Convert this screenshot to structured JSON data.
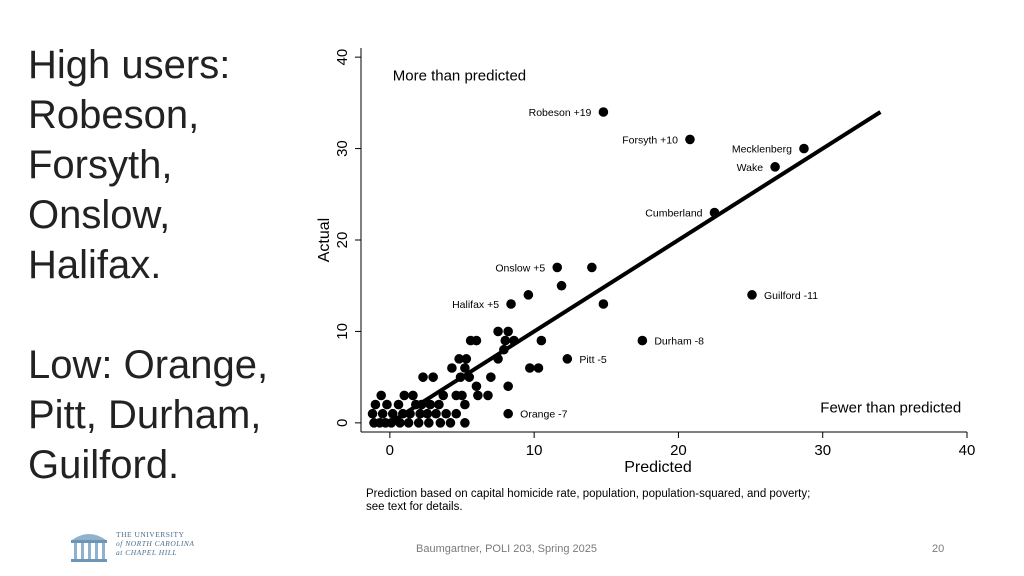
{
  "slide": {
    "heading_lines": [
      "High users:",
      "Robeson,",
      "Forsyth,",
      "Onslow,",
      "Halifax."
    ],
    "low_lines": [
      "Low: Orange,",
      "Pitt, Durham,",
      "Guilford."
    ],
    "footer_center": "Baumgartner, POLI 203, Spring 2025",
    "page_number": "20",
    "logo_lines": [
      "THE UNIVERSITY",
      "of NORTH CAROLINA",
      "at CHAPEL HILL"
    ]
  },
  "chart_data": {
    "type": "scatter",
    "xlabel": "Predicted",
    "ylabel": "Actual",
    "xlim": [
      -2,
      40
    ],
    "ylim": [
      -1,
      41
    ],
    "xticks": [
      0,
      10,
      20,
      30,
      40
    ],
    "yticks": [
      0,
      10,
      20,
      30,
      40
    ],
    "grid": false,
    "annotation_top": "More than predicted",
    "annotation_bottom": "Fewer than predicted",
    "note": "Prediction based on capital homicide rate, population, population-squared, and poverty; see text for details.",
    "fit_line": [
      [
        0,
        0
      ],
      [
        34,
        34
      ]
    ],
    "labeled_points": [
      {
        "label": "Robeson +19",
        "x": 14.8,
        "y": 34
      },
      {
        "label": "Forsyth +10",
        "x": 20.8,
        "y": 31
      },
      {
        "label": "Mecklenberg",
        "x": 28.7,
        "y": 30
      },
      {
        "label": "Wake",
        "x": 26.7,
        "y": 28
      },
      {
        "label": "Cumberland",
        "x": 22.5,
        "y": 23
      },
      {
        "label": "Onslow +5",
        "x": 11.6,
        "y": 17
      },
      {
        "label": "Halifax +5",
        "x": 8.4,
        "y": 13
      },
      {
        "label": "Guilford -11",
        "x": 25.1,
        "y": 14
      },
      {
        "label": "Durham -8",
        "x": 17.5,
        "y": 9
      },
      {
        "label": "Pitt -5",
        "x": 12.3,
        "y": 7
      },
      {
        "label": "Orange -7",
        "x": 8.2,
        "y": 1
      }
    ],
    "points": [
      [
        14.0,
        17
      ],
      [
        11.9,
        15
      ],
      [
        9.6,
        14
      ],
      [
        14.8,
        13
      ],
      [
        7.5,
        10
      ],
      [
        8.2,
        10
      ],
      [
        10.5,
        9
      ],
      [
        5.6,
        9
      ],
      [
        6.0,
        9
      ],
      [
        8.0,
        9
      ],
      [
        8.6,
        9
      ],
      [
        7.9,
        8
      ],
      [
        4.8,
        7
      ],
      [
        5.3,
        7
      ],
      [
        7.5,
        7
      ],
      [
        4.3,
        6
      ],
      [
        5.2,
        6
      ],
      [
        9.7,
        6
      ],
      [
        10.3,
        6
      ],
      [
        4.9,
        5
      ],
      [
        5.5,
        5
      ],
      [
        2.3,
        5
      ],
      [
        3.0,
        5
      ],
      [
        7.0,
        5
      ],
      [
        6.0,
        4
      ],
      [
        8.2,
        4
      ],
      [
        3.7,
        3
      ],
      [
        4.6,
        3
      ],
      [
        6.8,
        3
      ],
      [
        -0.6,
        3
      ],
      [
        1.0,
        3
      ],
      [
        1.6,
        3
      ],
      [
        5.0,
        3
      ],
      [
        6.1,
        3
      ],
      [
        -1.0,
        2
      ],
      [
        -0.2,
        2
      ],
      [
        0.6,
        2
      ],
      [
        1.8,
        2
      ],
      [
        2.2,
        2
      ],
      [
        2.8,
        2
      ],
      [
        3.4,
        2
      ],
      [
        5.2,
        2
      ],
      [
        -1.2,
        1
      ],
      [
        -0.5,
        1
      ],
      [
        0.2,
        1
      ],
      [
        0.9,
        1
      ],
      [
        1.4,
        1
      ],
      [
        2.1,
        1
      ],
      [
        2.6,
        1
      ],
      [
        3.2,
        1
      ],
      [
        3.9,
        1
      ],
      [
        4.6,
        1
      ],
      [
        -1.1,
        0
      ],
      [
        -0.7,
        0
      ],
      [
        -0.3,
        0
      ],
      [
        0.1,
        0
      ],
      [
        0.7,
        0
      ],
      [
        1.3,
        0
      ],
      [
        2.0,
        0
      ],
      [
        2.7,
        0
      ],
      [
        3.5,
        0
      ],
      [
        4.2,
        0
      ],
      [
        5.2,
        0
      ]
    ]
  }
}
